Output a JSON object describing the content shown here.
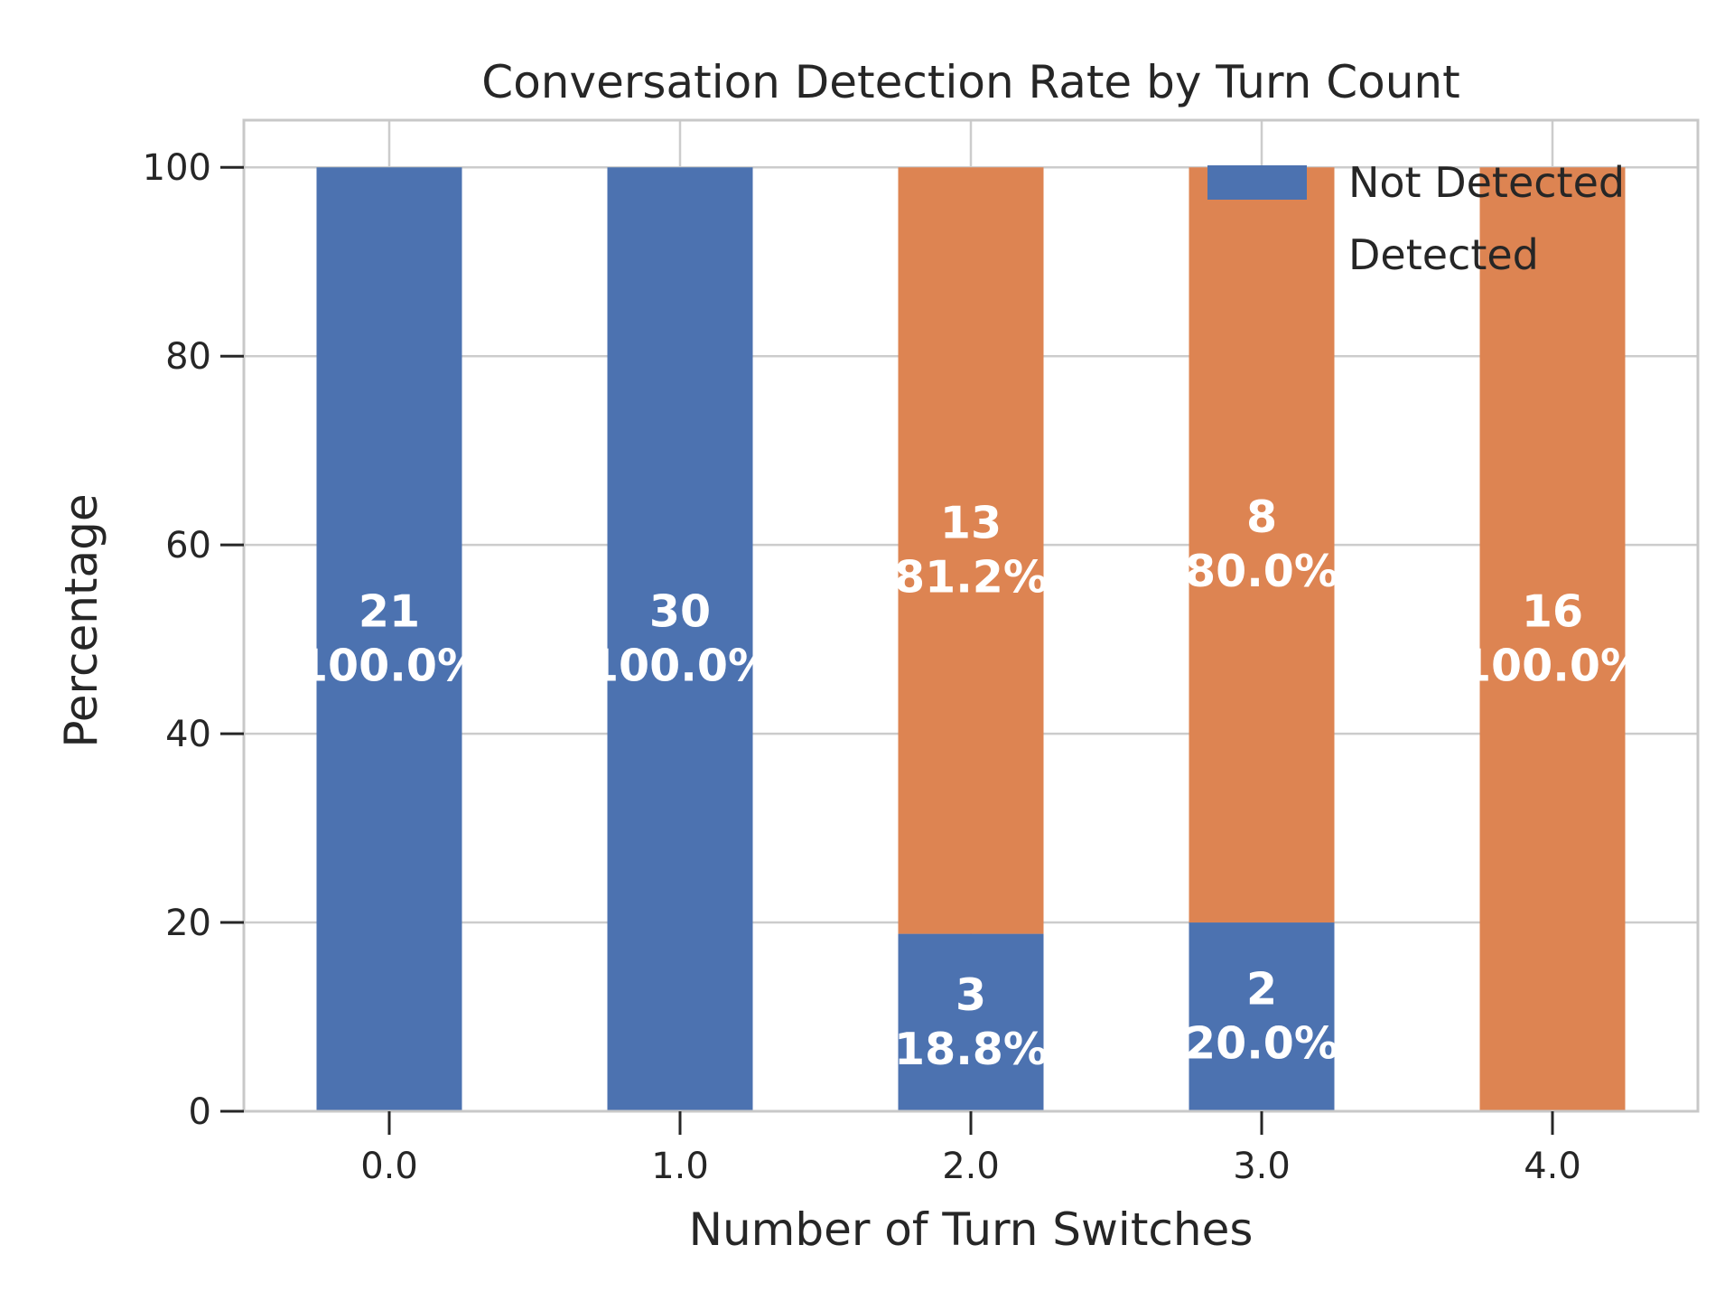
{
  "chart_data": {
    "type": "bar",
    "stacked": true,
    "title": "Conversation Detection Rate by Turn Count",
    "xlabel": "Number of Turn Switches",
    "ylabel": "Percentage",
    "categories": [
      "0.0",
      "1.0",
      "2.0",
      "3.0",
      "4.0"
    ],
    "ylim": [
      0,
      105
    ],
    "yticks": [
      "0",
      "20",
      "40",
      "60",
      "80",
      "100"
    ],
    "grid": true,
    "legend": {
      "position": "top-right"
    },
    "series": [
      {
        "name": "Not Detected",
        "color": "#4c72b0",
        "values": [
          100.0,
          100.0,
          18.8,
          20.0,
          0.0
        ],
        "counts": [
          "21",
          "30",
          "3",
          "2",
          ""
        ],
        "labels": [
          "100.0%",
          "100.0%",
          "18.8%",
          "20.0%",
          ""
        ]
      },
      {
        "name": "Detected",
        "color": "#dd8452",
        "values": [
          0.0,
          0.0,
          81.2,
          80.0,
          100.0
        ],
        "counts": [
          "",
          "",
          "13",
          "8",
          "16"
        ],
        "labels": [
          "",
          "",
          "81.2%",
          "80.0%",
          "100.0%"
        ]
      }
    ]
  }
}
